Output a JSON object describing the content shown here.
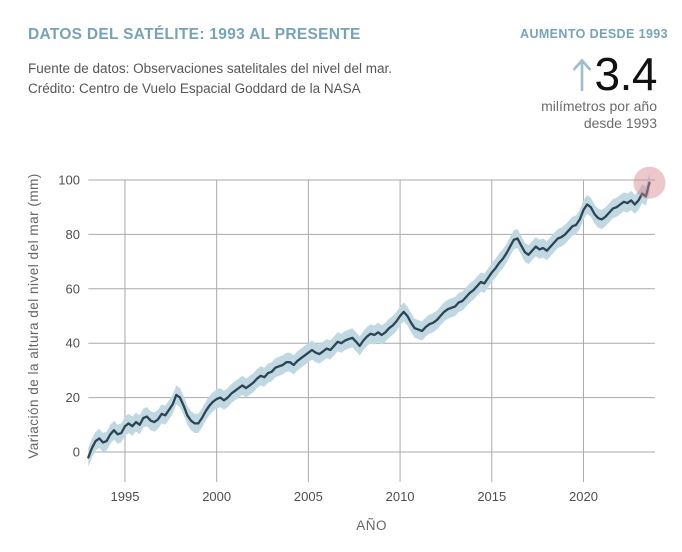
{
  "header": {
    "title": "DATOS DEL SATÉLITE: 1993 AL PRESENTE",
    "source_line1": "Fuente de datos: Observaciones satelitales del nivel del mar.",
    "source_line2": "Crédito: Centro de Vuelo Espacial Goddard de la NASA",
    "stat": {
      "label": "AUMENTO DESDE 1993",
      "value": "3.4",
      "unit_line1": "milímetros por año",
      "unit_line2": "desde 1993",
      "arrow_icon": "up-arrow"
    }
  },
  "colors": {
    "accent_teal": "#76a3b5",
    "arrow_blue": "#9fbecb",
    "line": "#2e4453",
    "band": "#bfd8e1",
    "grid": "#aaaaaa",
    "tick_text": "#4f4f4f",
    "axis_title_text": "#666666",
    "endpoint_pink": "#d5848f"
  },
  "chart_data": {
    "type": "line",
    "title": "",
    "xlabel": "AÑO",
    "ylabel": "Variación de la altura del nivel del mar (mm)",
    "x_ticks": [
      1995,
      2000,
      2005,
      2010,
      2015,
      2020
    ],
    "y_ticks": [
      0,
      20,
      40,
      60,
      80,
      100
    ],
    "xlim": [
      1993,
      2023.9
    ],
    "ylim": [
      0,
      100
    ],
    "grid": true,
    "legend": "none",
    "uncertainty_mm": 3.5,
    "endpoint_marker": "translucent-pink-circle-on-latest-point",
    "series": [
      {
        "name": "Variación de la altura del nivel del mar",
        "points": [
          [
            1993.0,
            -2
          ],
          [
            1993.2,
            1.5
          ],
          [
            1993.4,
            4
          ],
          [
            1993.6,
            5
          ],
          [
            1993.8,
            3.5
          ],
          [
            1994.0,
            4
          ],
          [
            1994.2,
            6.5
          ],
          [
            1994.4,
            8
          ],
          [
            1994.6,
            6.5
          ],
          [
            1994.8,
            7
          ],
          [
            1995.0,
            9.5
          ],
          [
            1995.2,
            10.5
          ],
          [
            1995.4,
            9.5
          ],
          [
            1995.6,
            11
          ],
          [
            1995.8,
            10
          ],
          [
            1996.0,
            12.5
          ],
          [
            1996.2,
            13
          ],
          [
            1996.4,
            11.5
          ],
          [
            1996.6,
            11
          ],
          [
            1996.8,
            12
          ],
          [
            1997.0,
            14
          ],
          [
            1997.2,
            13.5
          ],
          [
            1997.4,
            15.5
          ],
          [
            1997.6,
            17.5
          ],
          [
            1997.8,
            21
          ],
          [
            1998.0,
            20
          ],
          [
            1998.2,
            17
          ],
          [
            1998.4,
            13.5
          ],
          [
            1998.6,
            11.5
          ],
          [
            1998.8,
            10.5
          ],
          [
            1999.0,
            10.5
          ],
          [
            1999.2,
            12.5
          ],
          [
            1999.4,
            15
          ],
          [
            1999.6,
            17
          ],
          [
            1999.8,
            18.5
          ],
          [
            2000.0,
            19.5
          ],
          [
            2000.2,
            20
          ],
          [
            2000.4,
            19
          ],
          [
            2000.6,
            20
          ],
          [
            2000.8,
            21.5
          ],
          [
            2001.0,
            22.5
          ],
          [
            2001.2,
            23.5
          ],
          [
            2001.4,
            24.5
          ],
          [
            2001.6,
            23.5
          ],
          [
            2001.8,
            24.5
          ],
          [
            2002.0,
            25.5
          ],
          [
            2002.2,
            27
          ],
          [
            2002.4,
            28
          ],
          [
            2002.6,
            27.5
          ],
          [
            2002.8,
            29
          ],
          [
            2003.0,
            29.5
          ],
          [
            2003.2,
            31
          ],
          [
            2003.4,
            31.5
          ],
          [
            2003.6,
            32
          ],
          [
            2003.8,
            33
          ],
          [
            2004.0,
            33
          ],
          [
            2004.2,
            32
          ],
          [
            2004.4,
            33.5
          ],
          [
            2004.6,
            34.5
          ],
          [
            2004.8,
            35.5
          ],
          [
            2005.0,
            36.5
          ],
          [
            2005.2,
            37.5
          ],
          [
            2005.4,
            36.5
          ],
          [
            2005.6,
            36
          ],
          [
            2005.8,
            37
          ],
          [
            2006.0,
            38
          ],
          [
            2006.2,
            37.5
          ],
          [
            2006.4,
            39
          ],
          [
            2006.6,
            40.5
          ],
          [
            2006.8,
            40
          ],
          [
            2007.0,
            41
          ],
          [
            2007.2,
            41.5
          ],
          [
            2007.4,
            42
          ],
          [
            2007.6,
            40.5
          ],
          [
            2007.8,
            39
          ],
          [
            2008.0,
            41
          ],
          [
            2008.2,
            42.5
          ],
          [
            2008.4,
            43.5
          ],
          [
            2008.6,
            43
          ],
          [
            2008.8,
            44
          ],
          [
            2009.0,
            43
          ],
          [
            2009.2,
            44
          ],
          [
            2009.4,
            45.5
          ],
          [
            2009.6,
            46.5
          ],
          [
            2009.8,
            48
          ],
          [
            2010.0,
            50
          ],
          [
            2010.2,
            51.5
          ],
          [
            2010.4,
            50
          ],
          [
            2010.6,
            47.5
          ],
          [
            2010.8,
            45.5
          ],
          [
            2011.0,
            45
          ],
          [
            2011.2,
            44.5
          ],
          [
            2011.4,
            46
          ],
          [
            2011.6,
            47
          ],
          [
            2011.8,
            47.5
          ],
          [
            2012.0,
            48.5
          ],
          [
            2012.2,
            50
          ],
          [
            2012.4,
            51.5
          ],
          [
            2012.6,
            52.5
          ],
          [
            2012.8,
            53
          ],
          [
            2013.0,
            53.5
          ],
          [
            2013.2,
            55
          ],
          [
            2013.4,
            55.5
          ],
          [
            2013.6,
            57
          ],
          [
            2013.8,
            58.5
          ],
          [
            2014.0,
            59.5
          ],
          [
            2014.2,
            61
          ],
          [
            2014.4,
            62.5
          ],
          [
            2014.6,
            62
          ],
          [
            2014.8,
            64
          ],
          [
            2015.0,
            66
          ],
          [
            2015.2,
            67.5
          ],
          [
            2015.4,
            69.5
          ],
          [
            2015.6,
            71
          ],
          [
            2015.8,
            73
          ],
          [
            2016.0,
            75.5
          ],
          [
            2016.2,
            78
          ],
          [
            2016.4,
            78.5
          ],
          [
            2016.6,
            76
          ],
          [
            2016.8,
            73.5
          ],
          [
            2017.0,
            72.5
          ],
          [
            2017.2,
            74
          ],
          [
            2017.4,
            75.5
          ],
          [
            2017.6,
            74.5
          ],
          [
            2017.8,
            75
          ],
          [
            2018.0,
            74
          ],
          [
            2018.2,
            75.5
          ],
          [
            2018.4,
            77
          ],
          [
            2018.6,
            78.5
          ],
          [
            2018.8,
            79
          ],
          [
            2019.0,
            80
          ],
          [
            2019.2,
            81.5
          ],
          [
            2019.4,
            83
          ],
          [
            2019.6,
            83.5
          ],
          [
            2019.8,
            85.5
          ],
          [
            2020.0,
            89
          ],
          [
            2020.2,
            91
          ],
          [
            2020.4,
            90
          ],
          [
            2020.6,
            87.5
          ],
          [
            2020.8,
            86
          ],
          [
            2021.0,
            85.5
          ],
          [
            2021.2,
            86.5
          ],
          [
            2021.4,
            88
          ],
          [
            2021.6,
            89.5
          ],
          [
            2021.8,
            90
          ],
          [
            2022.0,
            91
          ],
          [
            2022.2,
            92
          ],
          [
            2022.4,
            91.5
          ],
          [
            2022.6,
            92.5
          ],
          [
            2022.8,
            91
          ],
          [
            2023.0,
            92.5
          ],
          [
            2023.2,
            95
          ],
          [
            2023.4,
            94
          ],
          [
            2023.6,
            99
          ]
        ]
      }
    ]
  }
}
